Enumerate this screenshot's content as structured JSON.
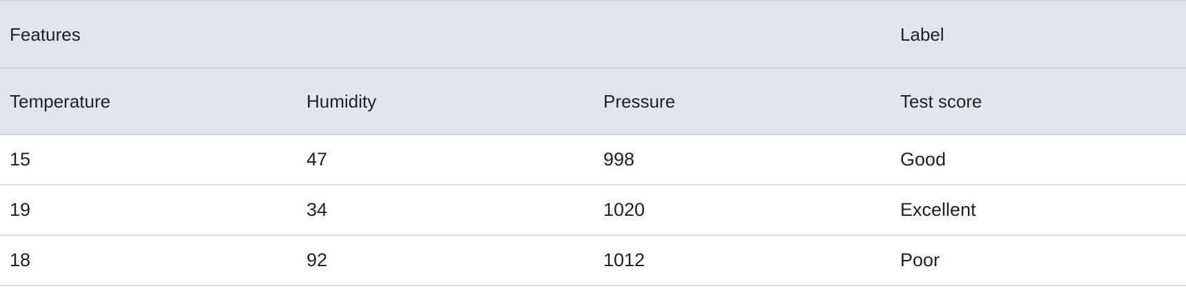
{
  "table": {
    "group_headers": {
      "features": "Features",
      "label": "Label"
    },
    "columns": [
      "Temperature",
      "Humidity",
      "Pressure",
      "Test score"
    ],
    "rows": [
      [
        "15",
        "47",
        "998",
        "Good"
      ],
      [
        "19",
        "34",
        "1020",
        "Excellent"
      ],
      [
        "18",
        "92",
        "1012",
        "Poor"
      ]
    ]
  }
}
